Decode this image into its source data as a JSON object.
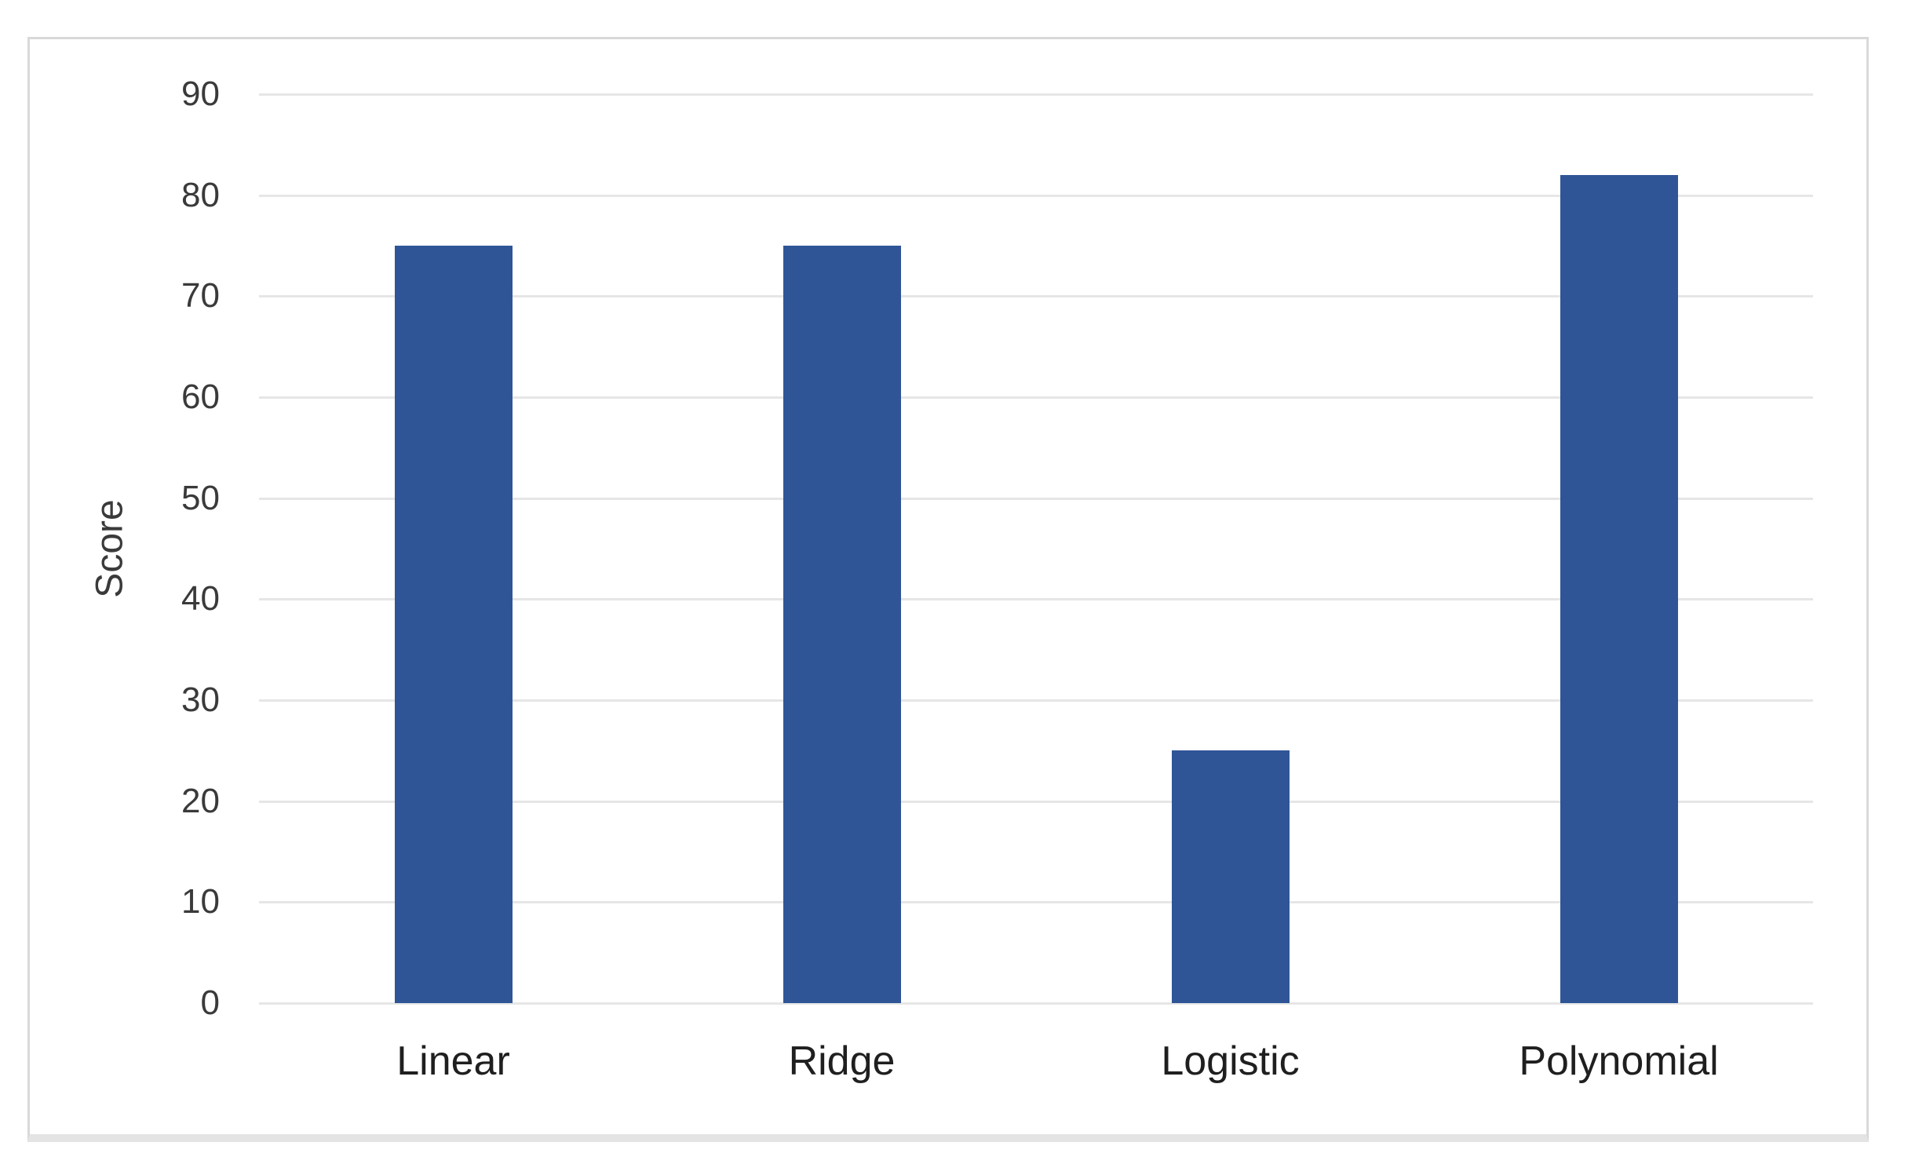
{
  "chart_data": {
    "type": "bar",
    "categories": [
      "Linear",
      "Ridge",
      "Logistic",
      "Polynomial"
    ],
    "values": [
      75,
      75,
      25,
      82
    ],
    "title": "",
    "xlabel": "",
    "ylabel": "Score",
    "ylim": [
      0,
      90
    ],
    "yticks": [
      0,
      10,
      20,
      30,
      40,
      50,
      60,
      70,
      80,
      90
    ],
    "grid": "horizontal",
    "legend": "none"
  },
  "colors": {
    "bar": "#2F5597",
    "gridline": "#E6E6E6",
    "axis_text": "#3A3A3A",
    "category_text": "#1F1F1F",
    "frame_border": "#D9D9D9",
    "background": "#FFFFFF"
  }
}
